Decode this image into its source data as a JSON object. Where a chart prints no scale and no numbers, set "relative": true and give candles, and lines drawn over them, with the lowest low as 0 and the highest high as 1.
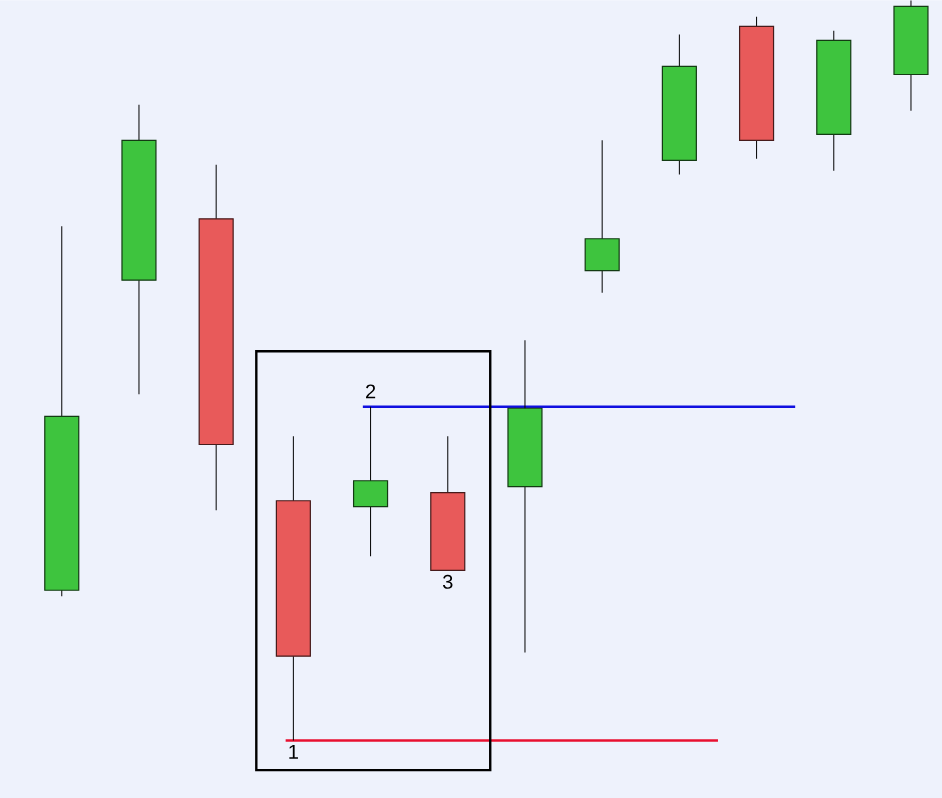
{
  "chart_data": {
    "type": "candlestick",
    "relative": true,
    "categories": [
      null,
      null,
      null,
      null,
      null,
      null,
      null,
      null,
      null,
      null,
      null,
      null
    ],
    "ohlc": [
      [
        0.203,
        0.695,
        0.195,
        0.438
      ],
      [
        0.622,
        0.859,
        0.468,
        0.811
      ],
      [
        0.705,
        0.778,
        0.311,
        0.4
      ],
      [
        0.324,
        0.411,
        0,
        0.114
      ],
      [
        0.316,
        0.451,
        0.249,
        0.351
      ],
      [
        0.335,
        0.411,
        0.23,
        0.23
      ],
      [
        0.343,
        0.541,
        0.119,
        0.449
      ],
      [
        0.635,
        0.811,
        0.605,
        0.678
      ],
      [
        0.784,
        0.954,
        0.765,
        0.911
      ],
      [
        0.965,
        0.978,
        0.786,
        0.811
      ],
      [
        0.819,
        0.959,
        0.77,
        0.946
      ],
      [
        0.9,
        1,
        0.851,
        0.992
      ]
    ],
    "colors": [
      "#3ec43e",
      "#3ec43e",
      "#e85a5a",
      "#e85a5a",
      "#3ec43e",
      "#e85a5a",
      "#3ec43e",
      "#3ec43e",
      "#3ec43e",
      "#e85a5a",
      "#3ec43e",
      "#3ec43e"
    ],
    "annotations": [
      {
        "text": "1",
        "y": 0
      },
      {
        "text": "2",
        "y": 0.451
      },
      {
        "text": "3",
        "y": 0.23
      }
    ],
    "ref_lines": [
      {
        "axis": "y",
        "value": 0.451,
        "color": "#1010e0"
      },
      {
        "axis": "y",
        "value": 0,
        "color": "#e81030"
      }
    ]
  }
}
